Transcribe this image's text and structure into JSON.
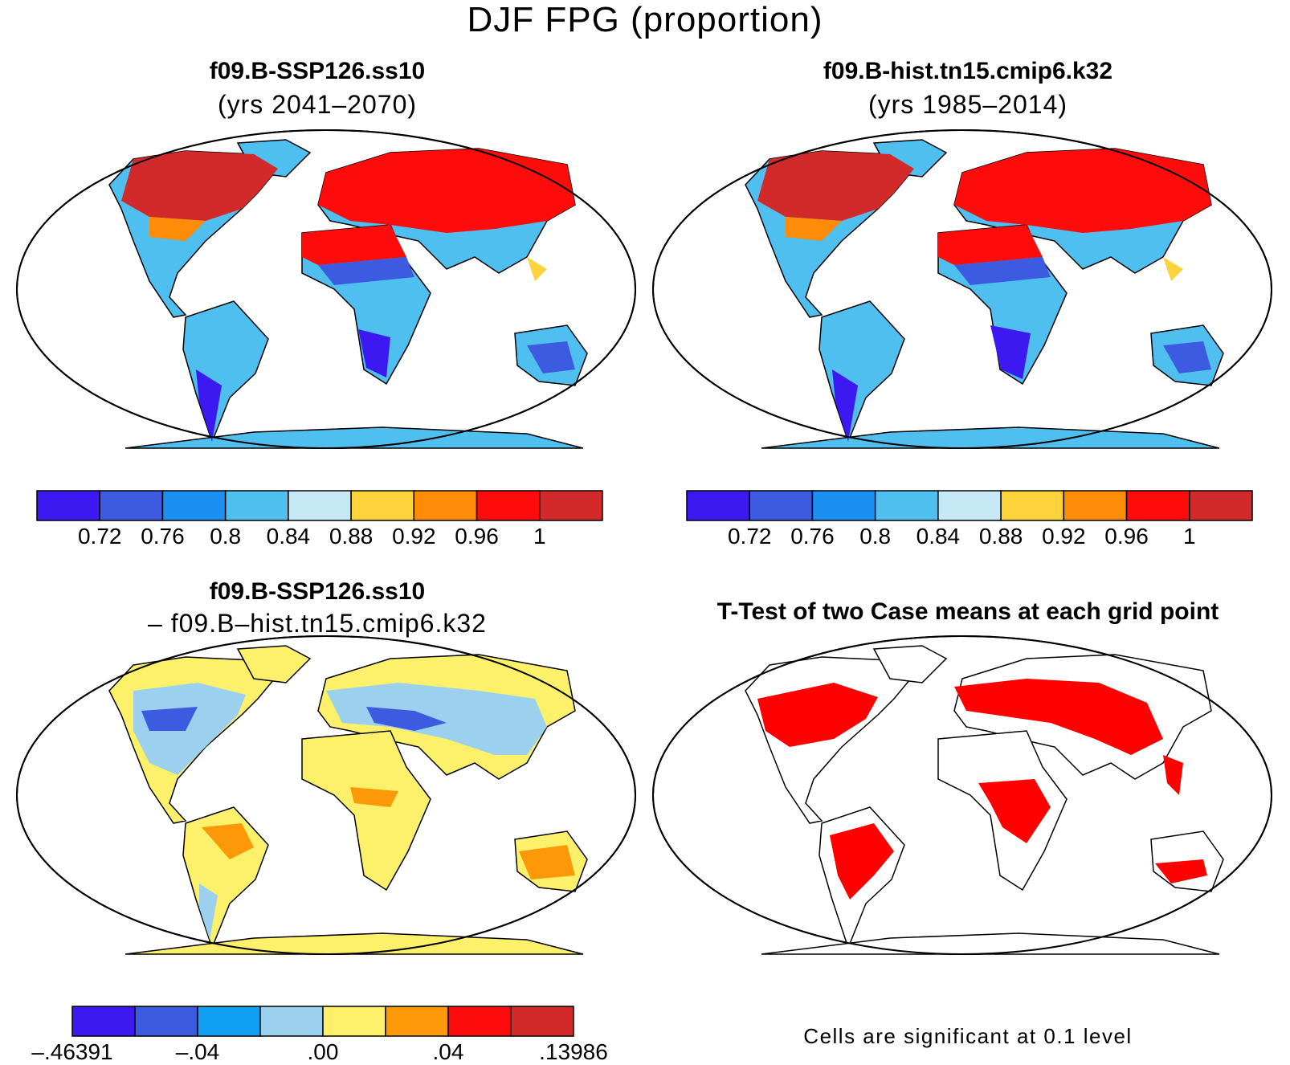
{
  "figure": {
    "title": "DJF FPG (proportion)"
  },
  "panels": [
    {
      "id": "tl",
      "title": "f09.B-SSP126.ss10",
      "subtitle": "(yrs 2041–2070)",
      "kind": "absolute"
    },
    {
      "id": "tr",
      "title": "f09.B-hist.tn15.cmip6.k32",
      "subtitle": "(yrs 1985–2014)",
      "kind": "absolute"
    },
    {
      "id": "bl",
      "title": "f09.B-SSP126.ss10",
      "subtitle": "– f09.B–hist.tn15.cmip6.k32",
      "kind": "difference"
    },
    {
      "id": "br",
      "title": "T-Test of two Case means at each grid point",
      "subtitle": "",
      "kind": "ttest"
    }
  ],
  "colorbar_abs": {
    "colors": [
      "#3b19f0",
      "#3d5be0",
      "#1b8ff2",
      "#4fbff0",
      "#c7e8f5",
      "#fcd33a",
      "#fd8d08",
      "#fe0b0b",
      "#d22a2a"
    ],
    "labels": [
      "0.72",
      "0.76",
      "0.8",
      "0.84",
      "0.88",
      "0.92",
      "0.96",
      "1"
    ]
  },
  "colorbar_diff": {
    "colors": [
      "#3b19f0",
      "#3d5be0",
      "#12a0f5",
      "#9bd0ef",
      "#fdf06a",
      "#fd9908",
      "#fe0b0b",
      "#d22a2a"
    ],
    "labels": [
      "–.46391",
      "–.04",
      ".00",
      ".04",
      ".13986"
    ]
  },
  "ttest": {
    "note": "Cells are significant at 0.1 level",
    "significant_color": "#fe0000"
  }
}
